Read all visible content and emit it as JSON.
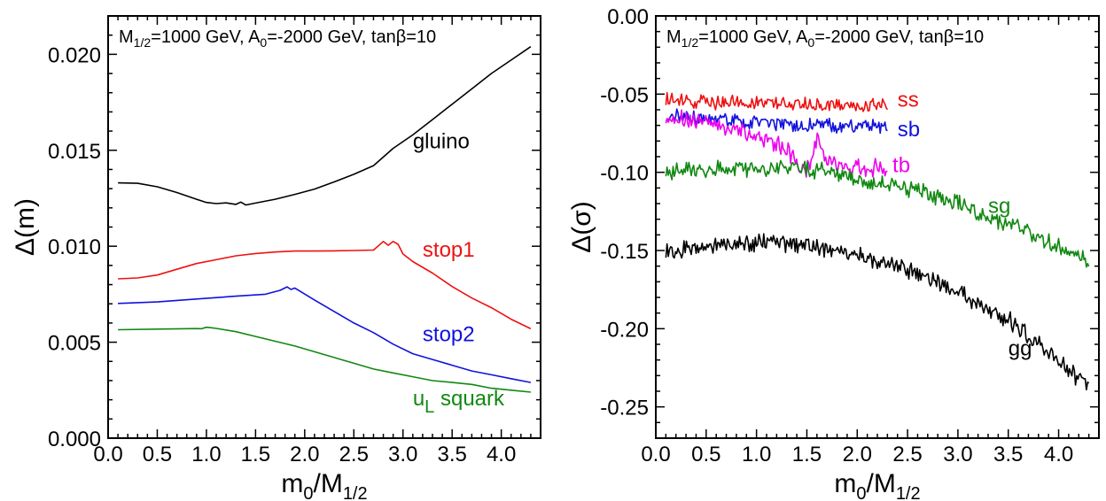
{
  "chart_data": [
    {
      "type": "line",
      "title": "M_{1/2}=1000 GeV, A_0=-2000 GeV, tanβ=10",
      "title_parts": {
        "a": "M",
        "a_sub": "1/2",
        "b": "=1000 GeV, A",
        "b_sub": "0",
        "c": "=-2000 GeV, tanβ=10"
      },
      "xlabel": "m_0/M_{1/2}",
      "xlabel_parts": {
        "main": "m",
        "sub1": "0",
        "mid": "/M",
        "sub2": "1/2"
      },
      "ylabel": "Δ(m)",
      "xlim": [
        0.0,
        4.4
      ],
      "ylim": [
        0.0,
        0.022
      ],
      "x_ticks": [
        "0.0",
        "0.5",
        "1.0",
        "1.5",
        "2.0",
        "2.5",
        "3.0",
        "3.5",
        "4.0"
      ],
      "x_tick_values": [
        0,
        0.5,
        1.0,
        1.5,
        2.0,
        2.5,
        3.0,
        3.5,
        4.0
      ],
      "y_ticks": [
        "0.000",
        "0.005",
        "0.010",
        "0.015",
        "0.020"
      ],
      "y_tick_values": [
        0,
        0.005,
        0.01,
        0.015,
        0.02
      ],
      "grid": false,
      "series": [
        {
          "name": "gluino",
          "color": "#000000",
          "label": {
            "text": "gluino",
            "x": 3.1,
            "y": 0.0151
          },
          "x": [
            0.1,
            0.3,
            0.5,
            0.7,
            0.9,
            1.0,
            1.1,
            1.2,
            1.3,
            1.35,
            1.4,
            1.5,
            1.7,
            1.9,
            2.1,
            2.3,
            2.5,
            2.7,
            2.9,
            3.1,
            3.3,
            3.5,
            3.7,
            3.9,
            4.1,
            4.3
          ],
          "y": [
            0.0133,
            0.01328,
            0.0131,
            0.0128,
            0.01245,
            0.01228,
            0.01222,
            0.01226,
            0.01218,
            0.0123,
            0.01215,
            0.01225,
            0.01245,
            0.0127,
            0.01298,
            0.01335,
            0.01375,
            0.0142,
            0.0151,
            0.0158,
            0.0166,
            0.0174,
            0.0182,
            0.019,
            0.0197,
            0.0204
          ]
        },
        {
          "name": "stop1",
          "color": "#ee1111",
          "label": {
            "text": "stop1",
            "x": 3.2,
            "y": 0.00945
          },
          "x": [
            0.1,
            0.3,
            0.5,
            0.7,
            0.9,
            1.1,
            1.3,
            1.5,
            1.7,
            1.9,
            2.1,
            2.3,
            2.5,
            2.7,
            2.8,
            2.85,
            2.9,
            2.95,
            3.0,
            3.1,
            3.3,
            3.5,
            3.7,
            3.9,
            4.1,
            4.3
          ],
          "y": [
            0.0083,
            0.00835,
            0.0085,
            0.0088,
            0.0091,
            0.0093,
            0.0095,
            0.00962,
            0.0097,
            0.00975,
            0.00975,
            0.00976,
            0.00978,
            0.0098,
            0.01025,
            0.01005,
            0.01025,
            0.0101,
            0.0096,
            0.0092,
            0.0086,
            0.0079,
            0.0073,
            0.0068,
            0.0062,
            0.0057
          ]
        },
        {
          "name": "stop2",
          "color": "#1111dd",
          "label": {
            "text": "stop2",
            "x": 3.2,
            "y": 0.00505
          },
          "x": [
            0.1,
            0.5,
            0.9,
            1.3,
            1.6,
            1.75,
            1.82,
            1.86,
            1.9,
            2.1,
            2.3,
            2.5,
            2.7,
            2.9,
            3.1,
            3.3,
            3.5,
            3.7,
            3.9,
            4.1,
            4.3
          ],
          "y": [
            0.00702,
            0.0071,
            0.00725,
            0.0074,
            0.0075,
            0.0077,
            0.00788,
            0.00775,
            0.00782,
            0.0072,
            0.0066,
            0.006,
            0.0055,
            0.0049,
            0.0044,
            0.0041,
            0.0038,
            0.0035,
            0.0033,
            0.0031,
            0.0029
          ]
        },
        {
          "name": "u_L squark",
          "color": "#118811",
          "label": {
            "text_main": "u",
            "text_sub": "L",
            "text_rest": " squark",
            "x": 3.1,
            "y": 0.0017
          },
          "x": [
            0.1,
            0.5,
            0.9,
            0.95,
            1.0,
            1.05,
            1.1,
            1.3,
            1.5,
            1.7,
            1.9,
            2.1,
            2.3,
            2.5,
            2.7,
            2.9,
            3.1,
            3.3,
            3.5,
            3.7,
            3.9,
            4.1,
            4.3
          ],
          "y": [
            0.00565,
            0.00568,
            0.00571,
            0.0057,
            0.00578,
            0.00575,
            0.00572,
            0.00555,
            0.0053,
            0.00505,
            0.0048,
            0.0045,
            0.0042,
            0.0039,
            0.0036,
            0.0034,
            0.0032,
            0.003,
            0.0029,
            0.0028,
            0.0026,
            0.0025,
            0.0024
          ]
        }
      ]
    },
    {
      "type": "line",
      "title": "M_{1/2}=1000 GeV, A_0=-2000 GeV, tanβ=10",
      "title_parts": {
        "a": "M",
        "a_sub": "1/2",
        "b": "=1000 GeV, A",
        "b_sub": "0",
        "c": "=-2000 GeV, tanβ=10"
      },
      "xlabel": "m_0/M_{1/2}",
      "xlabel_parts": {
        "main": "m",
        "sub1": "0",
        "mid": "/M",
        "sub2": "1/2"
      },
      "ylabel": "Δ(σ)",
      "xlim": [
        0.0,
        4.4
      ],
      "ylim": [
        -0.27,
        0.0
      ],
      "x_ticks": [
        "0.0",
        "0.5",
        "1.0",
        "1.5",
        "2.0",
        "2.5",
        "3.0",
        "3.5",
        "4.0"
      ],
      "x_tick_values": [
        0,
        0.5,
        1.0,
        1.5,
        2.0,
        2.5,
        3.0,
        3.5,
        4.0
      ],
      "y_ticks": [
        "0.00",
        "-0.05",
        "-0.10",
        "-0.15",
        "-0.20",
        "-0.25"
      ],
      "y_tick_values": [
        0,
        -0.05,
        -0.1,
        -0.15,
        -0.2,
        -0.25
      ],
      "grid": false,
      "series": [
        {
          "name": "ss",
          "color": "#ee1111",
          "label": {
            "text": "ss",
            "x": 2.4,
            "y": -0.058
          },
          "x": [
            0.1,
            0.5,
            1.0,
            1.5,
            2.0,
            2.3
          ],
          "y": [
            -0.054,
            -0.055,
            -0.056,
            -0.057,
            -0.058,
            -0.057
          ],
          "noise": 0.005
        },
        {
          "name": "sb",
          "color": "#1111dd",
          "label": {
            "text": "sb",
            "x": 2.4,
            "y": -0.077
          },
          "x": [
            0.1,
            0.5,
            1.0,
            1.5,
            2.0,
            2.3
          ],
          "y": [
            -0.064,
            -0.066,
            -0.068,
            -0.07,
            -0.071,
            -0.071
          ],
          "noise": 0.005
        },
        {
          "name": "tb",
          "color": "#ee00ee",
          "label": {
            "text": "tb",
            "x": 2.35,
            "y": -0.1
          },
          "x": [
            0.1,
            0.5,
            0.9,
            1.1,
            1.3,
            1.45,
            1.5,
            1.55,
            1.62,
            1.68,
            1.75,
            1.9,
            2.1,
            2.3
          ],
          "y": [
            -0.065,
            -0.068,
            -0.075,
            -0.08,
            -0.085,
            -0.1,
            -0.1,
            -0.088,
            -0.077,
            -0.09,
            -0.095,
            -0.097,
            -0.097,
            -0.097
          ],
          "noise": 0.006
        },
        {
          "name": "sg",
          "color": "#118811",
          "label": {
            "text": "sg",
            "x": 3.3,
            "y": -0.126
          },
          "x": [
            0.1,
            0.5,
            1.0,
            1.5,
            2.0,
            2.5,
            3.0,
            3.5,
            4.0,
            4.3
          ],
          "y": [
            -0.099,
            -0.098,
            -0.097,
            -0.098,
            -0.103,
            -0.11,
            -0.12,
            -0.133,
            -0.148,
            -0.158
          ],
          "noise": 0.006
        },
        {
          "name": "gg",
          "color": "#000000",
          "label": {
            "text": "gg",
            "x": 3.5,
            "y": -0.217
          },
          "x": [
            0.1,
            0.5,
            1.0,
            1.5,
            2.0,
            2.5,
            3.0,
            3.5,
            4.0,
            4.3
          ],
          "y": [
            -0.151,
            -0.147,
            -0.145,
            -0.146,
            -0.153,
            -0.162,
            -0.177,
            -0.194,
            -0.22,
            -0.238
          ],
          "noise": 0.006
        }
      ]
    }
  ]
}
